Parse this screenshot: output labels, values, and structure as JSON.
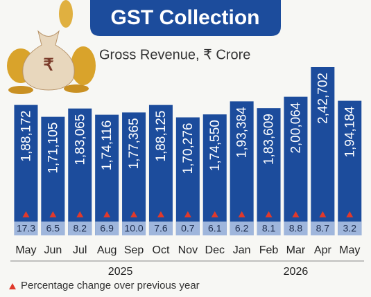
{
  "chart_data": {
    "type": "bar",
    "title": "GST Collection",
    "categories": [
      "May",
      "Jun",
      "Jul",
      "Aug",
      "Sep",
      "Oct",
      "Nov",
      "Dec",
      "Jan",
      "Feb",
      "Mar",
      "Apr",
      "May"
    ],
    "x_groups": [
      {
        "label": "2025",
        "count": 8
      },
      {
        "label": "2026",
        "count": 5
      }
    ],
    "series": [
      {
        "name": "Gross Revenue, ₹ Crore",
        "color": "#1c4c9c",
        "values": [
          188172,
          171105,
          183065,
          174116,
          177365,
          188125,
          170276,
          174550,
          193384,
          183609,
          200064,
          242702,
          194184
        ],
        "value_labels": [
          "1,88,172",
          "1,71,105",
          "1,83,065",
          "1,74,116",
          "1,77,365",
          "1,88,125",
          "1,70,276",
          "1,74,550",
          "1,93,384",
          "1,83,609",
          "2,00,064",
          "2,42,702",
          "1,94,184"
        ]
      },
      {
        "name": "Percentage change over previous year",
        "color": "#e0392b",
        "values": [
          17.3,
          6.5,
          8.2,
          6.9,
          10.0,
          7.6,
          0.7,
          6.1,
          6.2,
          8.1,
          8.8,
          8.7,
          3.2
        ],
        "value_labels": [
          "17.3",
          "6.5",
          "8.2",
          "6.9",
          "10.0",
          "7.6",
          "0.7",
          "6.1",
          "6.2",
          "8.1",
          "8.8",
          "8.7",
          "3.2"
        ]
      }
    ]
  }
}
